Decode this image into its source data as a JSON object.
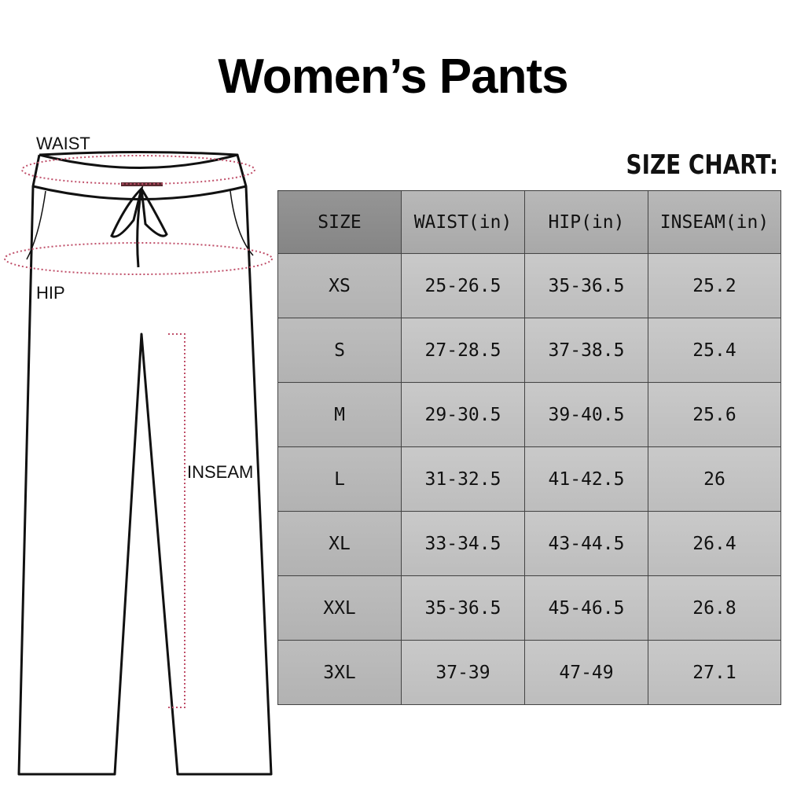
{
  "title": "Women’s Pants",
  "chart_label": "SIZE CHART:",
  "diagram_labels": {
    "waist": "WAIST",
    "hip": "HIP",
    "inseam": "INSEAM"
  },
  "table": {
    "headers": [
      "SIZE",
      "WAIST(in)",
      "HIP(in)",
      "INSEAM(in)"
    ],
    "rows": [
      [
        "XS",
        "25-26.5",
        "35-36.5",
        "25.2"
      ],
      [
        "S",
        "27-28.5",
        "37-38.5",
        "25.4"
      ],
      [
        "M",
        "29-30.5",
        "39-40.5",
        "25.6"
      ],
      [
        "L",
        "31-32.5",
        "41-42.5",
        "26"
      ],
      [
        "XL",
        "33-34.5",
        "43-44.5",
        "26.4"
      ],
      [
        "XXL",
        "35-36.5",
        "45-46.5",
        "26.8"
      ],
      [
        "3XL",
        "37-39",
        "47-49",
        "27.1"
      ]
    ]
  },
  "colors": {
    "measure_line": "#c0506a"
  }
}
